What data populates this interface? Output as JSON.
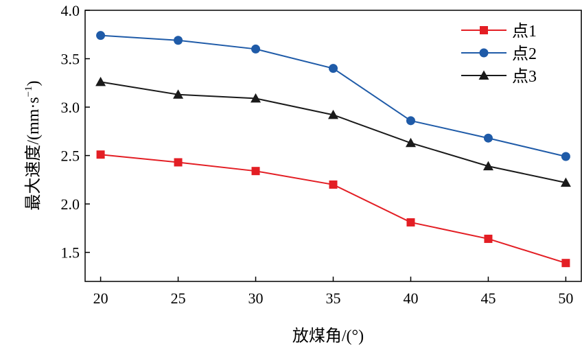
{
  "chart_data": {
    "type": "line",
    "x": [
      20,
      25,
      30,
      35,
      40,
      45,
      50
    ],
    "xlabel": "放煤角/(°)",
    "ylabel": "最大速度/(mm·s",
    "ylabel_sup": "−1",
    "ylabel_close": ")",
    "xlim": [
      19,
      51
    ],
    "ylim": [
      1.2,
      4.0
    ],
    "xticks": [
      "20",
      "25",
      "30",
      "35",
      "40",
      "45",
      "50"
    ],
    "yticks": [
      "1.5",
      "2.0",
      "2.5",
      "3.0",
      "3.5",
      "4.0"
    ],
    "ytick_values": [
      1.5,
      2.0,
      2.5,
      3.0,
      3.5,
      4.0
    ],
    "grid": false,
    "legend_position": "top-right",
    "series": [
      {
        "name": "点1",
        "color": "#e31e24",
        "marker": "square",
        "values": [
          2.51,
          2.43,
          2.34,
          2.2,
          1.81,
          1.64,
          1.39
        ]
      },
      {
        "name": "点2",
        "color": "#1f5ba8",
        "marker": "circle",
        "values": [
          3.74,
          3.69,
          3.6,
          3.4,
          2.86,
          2.68,
          2.49
        ]
      },
      {
        "name": "点3",
        "color": "#1a1a1a",
        "marker": "triangle",
        "values": [
          3.26,
          3.13,
          3.09,
          2.92,
          2.63,
          2.39,
          2.22
        ]
      }
    ]
  }
}
